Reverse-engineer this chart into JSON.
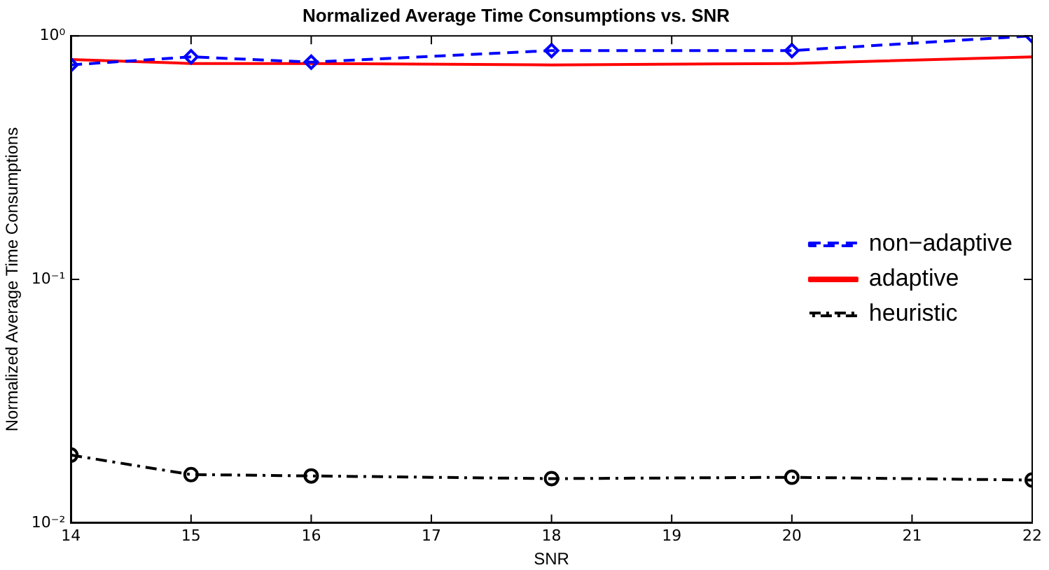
{
  "chart_data": {
    "type": "line",
    "title": "Normalized Average Time Consumptions vs. SNR",
    "xlabel": "SNR",
    "ylabel": "Normalized Average Time Consumptions",
    "x": [
      14,
      15,
      16,
      18,
      20,
      22
    ],
    "series": [
      {
        "name": "non−adaptive",
        "color": "#0000ff",
        "values": [
          0.76,
          0.82,
          0.78,
          0.87,
          0.87,
          1.0
        ],
        "marker": "diamond",
        "line_style": "dashed"
      },
      {
        "name": "adaptive",
        "color": "#ff0000",
        "values": [
          0.8,
          0.77,
          0.77,
          0.76,
          0.77,
          0.82
        ],
        "marker": "none",
        "line_style": "solid"
      },
      {
        "name": "heuristic",
        "color": "#000000",
        "values": [
          0.019,
          0.0158,
          0.0156,
          0.0152,
          0.0154,
          0.015
        ],
        "marker": "circle",
        "line_style": "dashdot"
      }
    ],
    "xlim": [
      14,
      22
    ],
    "xticks": [
      14,
      15,
      16,
      17,
      18,
      19,
      20,
      21,
      22
    ],
    "ylim": [
      0.01,
      1
    ],
    "yticks": [
      {
        "value": 0.01,
        "label": "10⁻²"
      },
      {
        "value": 0.1,
        "label": "10⁻¹"
      },
      {
        "value": 1,
        "label": "10⁰"
      }
    ],
    "log": "y",
    "grid": false,
    "legend": "right"
  }
}
